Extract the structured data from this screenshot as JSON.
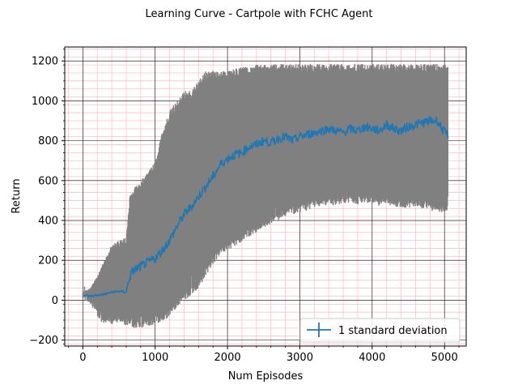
{
  "chart_data": {
    "type": "line",
    "title": "Learning Curve - Cartpole with FCHC Agent",
    "xlabel": "Num Episodes",
    "ylabel": "Return",
    "xlim": [
      -250,
      5300
    ],
    "ylim": [
      -230,
      1270
    ],
    "xticks": [
      0,
      1000,
      2000,
      3000,
      4000,
      5000
    ],
    "yticks": [
      -200,
      0,
      200,
      400,
      600,
      800,
      1000,
      1200
    ],
    "xtick_labels": [
      "0",
      "1000",
      "2000",
      "3000",
      "4000",
      "5000"
    ],
    "ytick_labels": [
      "−200",
      "0",
      "200",
      "400",
      "600",
      "800",
      "1000",
      "1200"
    ],
    "grid": {
      "major": true,
      "minor": true,
      "major_color": "#000000",
      "minor_color": "#ffc0cb"
    },
    "legend": {
      "label": "1 standard deviation",
      "placement": "lower-right"
    },
    "colors": {
      "mean_line": "#1f77b4",
      "error_band": "#808080"
    },
    "series": [
      {
        "x": [
          0,
          100,
          200,
          300,
          400,
          500,
          600,
          650,
          700,
          800,
          900,
          1000,
          1100,
          1200,
          1300,
          1400,
          1500,
          1600,
          1700,
          1800,
          1900,
          2000,
          2100,
          2200,
          2300,
          2400,
          2500,
          2600,
          2700,
          2800,
          2900,
          3000,
          3100,
          3200,
          3300,
          3400,
          3500,
          3600,
          3700,
          3800,
          3900,
          4000,
          4100,
          4200,
          4300,
          4400,
          4500,
          4600,
          4700,
          4800,
          4900,
          5000,
          5050
        ],
        "mean": [
          25,
          20,
          25,
          30,
          40,
          45,
          40,
          120,
          150,
          170,
          190,
          210,
          250,
          300,
          370,
          430,
          470,
          520,
          570,
          620,
          680,
          710,
          730,
          740,
          770,
          780,
          800,
          790,
          810,
          820,
          800,
          820,
          830,
          840,
          850,
          860,
          850,
          840,
          860,
          850,
          870,
          860,
          850,
          880,
          860,
          850,
          870,
          880,
          890,
          900,
          900,
          840,
          830
        ],
        "upper": [
          40,
          60,
          120,
          200,
          280,
          300,
          320,
          520,
          560,
          600,
          640,
          700,
          850,
          950,
          1000,
          1050,
          1050,
          1100,
          1150,
          1150,
          1150,
          1150,
          1160,
          1170,
          1175,
          1180,
          1185,
          1185,
          1185,
          1185,
          1185,
          1185,
          1185,
          1185,
          1185,
          1185,
          1185,
          1185,
          1185,
          1185,
          1185,
          1185,
          1185,
          1185,
          1185,
          1185,
          1185,
          1185,
          1185,
          1185,
          1185,
          1180,
          1180
        ],
        "lower": [
          5,
          -20,
          -80,
          -130,
          -120,
          -110,
          -130,
          -120,
          -140,
          -140,
          -130,
          -120,
          -110,
          -80,
          -40,
          0,
          20,
          60,
          120,
          180,
          230,
          250,
          270,
          290,
          320,
          340,
          360,
          380,
          400,
          420,
          430,
          440,
          450,
          460,
          470,
          470,
          480,
          480,
          490,
          480,
          490,
          480,
          470,
          480,
          470,
          460,
          460,
          470,
          460,
          450,
          440,
          440,
          440
        ]
      }
    ]
  }
}
